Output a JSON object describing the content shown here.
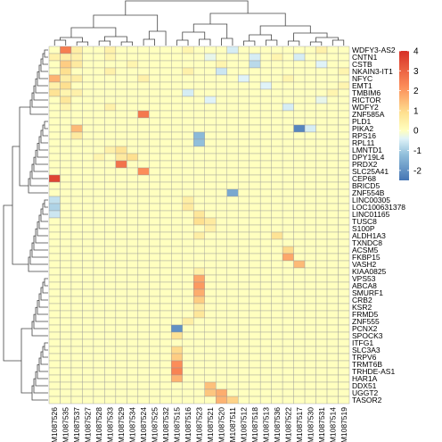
{
  "chart_data": {
    "type": "heatmap",
    "title": "",
    "samples": [
      "GSM1087526",
      "GSM1087535",
      "GSM1087537",
      "GSM1087527",
      "GSM1087528",
      "GSM1087533",
      "GSM1087529",
      "GSM1087534",
      "GSM1087524",
      "GSM1087525",
      "GSM1087532",
      "GSM1087515",
      "GSM1087516",
      "GSM1087523",
      "GSM1087521",
      "GSM1087520",
      "GSM1087511",
      "GSM1087512",
      "GSM1087518",
      "GSM1087513",
      "GSM1087536",
      "GSM1087522",
      "GSM1087517",
      "GSM1087530",
      "GSM1087531",
      "GSM1087514",
      "GSM1087519"
    ],
    "genes": [
      "WDFY3-AS2",
      "CNTN1",
      "CSTB",
      "NKAIN3-IT1",
      "NFYC",
      "EMT1",
      "TMBIM6",
      "RICTOR",
      "WDFY2",
      "ZNF585A",
      "PLD1",
      "PIKA2",
      "RPS16",
      "RPL11",
      "LMNTD1",
      "DPY19L4",
      "PRDX2",
      "SLC25A41",
      "CEP68",
      "BRICD5",
      "ZNF554B",
      "LINC00305",
      "LOC100631378",
      "LINC01165",
      "TUSC8",
      "S100P",
      "ALDH1A3",
      "TXNDC8",
      "ACSM5",
      "FKBP15",
      "VASH2",
      "KIAA0825",
      "VPS53",
      "ABCA8",
      "SMURF1",
      "CRB2",
      "KSR2",
      "FRMD5",
      "ZNF555",
      "PCNX2",
      "SPOCK3",
      "ITFG1",
      "SLC3A3",
      "TRPV6",
      "TRMT6B",
      "TRHDE-AS1",
      "HAR1A",
      "DDX51",
      "UGGT2",
      "TASOR2"
    ],
    "color_scale": {
      "min": -2.5,
      "max": 4,
      "ticks": [
        4,
        3,
        2,
        1,
        0,
        -1,
        -2
      ],
      "colors": [
        "#4575b4",
        "#91bfdb",
        "#e0f3f8",
        "#ffffbf",
        "#fee090",
        "#fc8d59",
        "#d73027"
      ],
      "stops": [
        -2.5,
        -1.2,
        -0.4,
        0,
        0.9,
        2.2,
        4
      ]
    },
    "values": [
      [
        0,
        2.5,
        0.5,
        0,
        0,
        0.4,
        0,
        0,
        0,
        0,
        0,
        0,
        0.3,
        0,
        0,
        0,
        -0.5,
        0,
        0,
        0,
        0,
        0,
        0,
        0,
        0.4,
        0,
        0
      ],
      [
        0.4,
        0.5,
        0.4,
        0,
        0,
        0.3,
        0,
        0,
        0,
        0,
        0,
        0,
        0,
        0,
        -0.3,
        0,
        0,
        0,
        -0.5,
        0,
        0.3,
        0,
        -0.5,
        0,
        0,
        0,
        0
      ],
      [
        0,
        1.2,
        0.6,
        0,
        0,
        0,
        0,
        0.3,
        0,
        0,
        0,
        0,
        0,
        0,
        0,
        0.3,
        0,
        0,
        -0.8,
        0,
        0,
        0,
        0,
        0,
        -0.4,
        0,
        0
      ],
      [
        0,
        0.9,
        0,
        0,
        0,
        0.4,
        0,
        0,
        0,
        0,
        0,
        0,
        0.4,
        0,
        0,
        -0.6,
        0,
        0,
        0,
        0,
        0,
        0,
        0,
        0,
        0,
        0,
        0.3
      ],
      [
        1.6,
        0.5,
        0.5,
        0,
        0,
        0,
        0,
        0,
        0.4,
        0,
        0,
        0,
        0,
        0,
        0,
        0,
        0,
        -0.4,
        0,
        0,
        0,
        0.3,
        0,
        0,
        0,
        0,
        0
      ],
      [
        0.4,
        0.9,
        0,
        0,
        0,
        0,
        0,
        0,
        0,
        0,
        0,
        0,
        0,
        0,
        0,
        0,
        0,
        0,
        0,
        -0.4,
        0,
        0,
        0,
        0,
        0,
        0,
        0.3
      ],
      [
        0.8,
        0.3,
        0.4,
        0,
        0,
        0,
        0,
        0,
        0,
        0,
        0,
        0,
        -0.5,
        0,
        0,
        0,
        0,
        0,
        0,
        0,
        0,
        0,
        0,
        0,
        0,
        0.3,
        0
      ],
      [
        0,
        0.7,
        0,
        0,
        0,
        0,
        0,
        0,
        0,
        0,
        0,
        0,
        0,
        0,
        -0.4,
        0,
        0,
        0,
        0,
        0,
        0,
        0,
        0,
        0,
        -0.3,
        0,
        0
      ],
      [
        0,
        0.3,
        0,
        0,
        0,
        0.4,
        0,
        0,
        0,
        0,
        0,
        0,
        0,
        0,
        0,
        0,
        0,
        0,
        0,
        0,
        0,
        -0.5,
        0,
        0,
        0,
        0,
        0
      ],
      [
        0,
        0,
        0,
        0,
        0,
        0,
        0,
        0,
        2.6,
        0,
        0,
        0,
        0,
        0,
        0,
        0,
        0,
        0,
        0,
        0,
        0,
        0,
        0,
        0,
        0,
        0,
        0
      ],
      [
        0,
        0,
        0,
        0,
        0,
        0,
        0,
        0,
        0,
        0,
        0,
        0,
        0,
        0,
        0,
        0,
        0,
        0,
        0,
        0,
        0,
        0,
        0,
        0,
        0,
        0,
        0
      ],
      [
        0,
        0,
        1.5,
        0,
        0,
        0,
        0,
        0,
        0,
        0,
        0,
        0,
        0,
        0,
        0,
        0,
        0,
        0,
        0,
        0,
        0,
        0,
        -2.2,
        -0.5,
        0,
        0,
        0
      ],
      [
        0,
        0,
        0.6,
        0,
        0,
        0,
        0,
        0,
        0,
        0,
        0,
        0,
        0,
        -1.3,
        0,
        0,
        0,
        0,
        0,
        0,
        0,
        0,
        0,
        0,
        0,
        0,
        0
      ],
      [
        0,
        0,
        0,
        0,
        0,
        0,
        0,
        0,
        0,
        0,
        0,
        0,
        0,
        -1.2,
        0,
        0,
        0,
        0,
        0,
        0,
        0,
        0,
        0,
        0,
        0,
        0,
        0
      ],
      [
        0,
        0,
        0,
        0,
        0,
        0.4,
        0.8,
        0,
        0,
        0,
        0,
        0,
        0,
        0,
        0,
        0,
        0,
        0,
        0,
        0,
        0,
        0,
        0,
        0,
        0,
        0,
        0
      ],
      [
        0,
        0,
        0,
        0,
        0.3,
        0,
        0.6,
        0.9,
        0,
        0,
        0,
        0,
        0,
        0,
        0,
        0,
        0,
        0,
        0,
        0,
        0,
        0,
        0,
        0,
        0,
        0,
        0
      ],
      [
        0,
        0,
        0,
        0,
        0,
        0,
        2.7,
        0,
        0,
        0,
        0,
        0,
        0,
        0,
        0,
        0,
        0,
        0,
        0,
        0,
        0,
        0,
        0,
        0,
        0,
        0,
        0
      ],
      [
        0,
        0,
        0,
        0,
        0,
        0,
        0,
        0,
        2.2,
        0,
        0,
        0,
        0,
        0,
        0,
        0,
        0,
        0,
        0,
        0,
        0,
        0,
        0,
        0,
        0,
        0,
        0
      ],
      [
        3.6,
        0,
        0,
        0,
        0,
        0,
        0,
        0,
        0,
        0,
        0,
        0,
        0,
        0,
        0,
        0,
        0,
        0,
        0,
        0,
        0,
        0,
        0,
        0,
        0,
        0,
        0
      ],
      [
        0,
        0,
        0,
        0,
        0,
        0,
        0,
        0,
        0,
        0,
        0,
        0,
        0,
        0,
        0,
        0,
        0,
        0,
        0,
        0,
        0,
        0,
        0,
        0,
        0,
        0,
        0
      ],
      [
        0,
        0,
        0,
        0,
        0,
        0,
        0,
        0,
        0,
        0,
        0,
        0,
        0,
        0,
        0,
        0,
        -1.6,
        0,
        0,
        0,
        0,
        0,
        0,
        0,
        0,
        0,
        0
      ],
      [
        -0.7,
        0,
        0,
        0,
        0,
        0,
        0,
        0,
        0,
        0,
        0,
        0,
        0.5,
        0,
        0,
        0,
        0,
        0,
        0,
        0,
        0,
        0,
        0,
        0,
        0,
        0,
        0
      ],
      [
        -0.9,
        0,
        0,
        0,
        0,
        0,
        0,
        0,
        0,
        0,
        0,
        0,
        0.6,
        0,
        0,
        0,
        0,
        0,
        0,
        0,
        0,
        0,
        0,
        0,
        0,
        0,
        0
      ],
      [
        -0.6,
        0,
        0,
        0,
        0,
        0,
        0,
        0,
        0,
        0,
        0,
        0,
        0,
        0.7,
        0,
        0,
        0,
        0,
        0,
        0,
        0,
        0,
        0,
        0,
        0,
        0,
        0
      ],
      [
        0,
        0,
        0,
        0,
        0,
        0,
        0,
        0,
        0,
        0,
        0,
        0,
        0,
        0.9,
        0.6,
        0,
        0,
        0,
        0,
        0,
        0,
        0,
        0,
        0,
        0,
        0,
        0
      ],
      [
        0,
        0,
        0,
        0,
        0,
        0,
        0,
        0,
        0,
        0,
        0,
        0,
        0,
        0,
        0.4,
        0,
        0,
        0,
        0,
        0,
        0,
        0,
        0,
        0,
        0,
        0,
        0
      ],
      [
        0,
        0,
        0,
        0,
        0,
        0,
        0,
        0,
        0,
        0,
        0,
        0,
        0,
        0.5,
        0,
        0,
        0,
        0,
        0,
        0,
        0.8,
        0,
        0,
        0,
        0,
        0,
        0
      ],
      [
        0,
        0,
        0,
        0,
        0,
        0,
        0,
        0,
        0,
        0,
        0,
        0,
        0,
        0,
        0,
        0,
        0,
        0,
        0,
        0,
        0,
        0,
        0,
        0,
        0,
        0,
        0
      ],
      [
        0,
        0,
        0,
        0,
        0,
        0,
        0,
        0,
        0,
        0,
        0,
        0,
        0,
        0,
        0,
        0,
        0,
        0,
        0,
        0,
        0,
        1,
        0,
        0,
        0,
        0,
        0
      ],
      [
        0,
        0,
        0,
        0,
        0,
        0,
        0,
        0,
        0,
        0,
        0,
        0,
        0,
        0,
        0,
        0,
        0,
        0,
        0,
        0,
        0,
        1.8,
        0,
        0,
        0,
        0,
        0
      ],
      [
        0,
        0,
        0,
        0,
        0,
        0,
        0,
        0,
        0,
        0,
        0,
        0,
        0,
        0,
        0,
        0,
        0,
        0,
        0,
        0,
        0,
        0,
        1.5,
        0,
        0,
        0,
        0
      ],
      [
        0,
        0,
        0,
        0,
        0,
        0,
        0,
        0,
        0,
        0,
        0,
        0,
        0,
        0.4,
        0,
        0,
        0,
        0,
        0,
        0,
        0,
        0,
        0,
        0,
        0,
        0,
        0
      ],
      [
        0,
        0,
        0,
        0,
        0,
        0,
        0,
        0,
        0,
        0,
        0,
        0,
        0,
        1.8,
        0,
        0,
        0,
        0,
        0,
        0,
        0,
        0,
        0,
        0,
        0,
        0,
        0
      ],
      [
        0,
        0,
        0,
        0,
        0,
        0,
        0,
        0,
        0,
        0,
        0,
        0,
        0,
        2,
        0,
        0,
        0,
        0,
        0,
        0,
        0,
        0,
        0,
        0,
        0,
        0,
        0
      ],
      [
        0,
        0,
        0,
        0,
        0,
        0,
        0,
        0,
        0,
        0,
        0,
        0,
        0,
        1.7,
        0,
        0,
        0,
        0,
        0,
        0,
        0,
        0,
        0,
        0,
        0,
        0,
        0
      ],
      [
        0,
        0,
        0,
        0,
        0,
        0,
        0,
        0,
        0,
        0,
        0,
        0,
        0,
        1.2,
        0,
        0,
        0,
        0,
        0,
        0,
        0,
        0,
        0,
        0,
        0,
        0,
        0
      ],
      [
        0,
        0,
        0,
        0,
        0,
        0,
        0,
        0,
        0,
        0,
        0,
        0,
        0,
        0.5,
        0,
        0,
        0,
        0,
        0,
        0,
        0,
        0,
        0,
        0,
        0,
        0,
        0
      ],
      [
        0,
        0,
        0,
        0,
        0,
        0,
        0,
        0,
        0,
        0,
        0,
        0,
        0,
        0.7,
        0,
        0,
        0,
        0,
        0,
        0,
        0,
        0,
        0,
        0,
        0,
        0,
        0
      ],
      [
        0,
        0,
        0,
        0,
        0,
        0,
        0,
        0,
        0,
        0,
        0,
        0,
        0.5,
        0,
        0,
        0,
        0,
        0,
        0,
        0,
        0,
        0,
        0,
        0,
        0,
        0,
        0
      ],
      [
        0,
        0,
        0,
        0,
        0,
        0,
        0,
        0,
        0,
        0,
        0,
        -2,
        0,
        0,
        0,
        0,
        0,
        0,
        0,
        0,
        0,
        0,
        0,
        0,
        0,
        0,
        0
      ],
      [
        0,
        0,
        0,
        0,
        0,
        0,
        0,
        0,
        0,
        0,
        0,
        0.8,
        0,
        0,
        0,
        0,
        0,
        0,
        0,
        0,
        0,
        0,
        0,
        0,
        0,
        0,
        0
      ],
      [
        0,
        0,
        0,
        0,
        0,
        0,
        0,
        0,
        0,
        0,
        0,
        0,
        0,
        0,
        0,
        0,
        0,
        0,
        0,
        0,
        0,
        0,
        0,
        0,
        0,
        0,
        0
      ],
      [
        0,
        0,
        0,
        0,
        0,
        0,
        0,
        0,
        0,
        0,
        0,
        1,
        0,
        0,
        0,
        0,
        0,
        0,
        0,
        0,
        0,
        0,
        0,
        0,
        0,
        0,
        0
      ],
      [
        0,
        0,
        0,
        0,
        0,
        0,
        0,
        0,
        0,
        0,
        0,
        1.2,
        0,
        0,
        0,
        0,
        0,
        0,
        0,
        0,
        0,
        0,
        0,
        0,
        0,
        0,
        0
      ],
      [
        0,
        0,
        0,
        0,
        0,
        0,
        0,
        0,
        0,
        0,
        0,
        2.2,
        0,
        0,
        0,
        0,
        0,
        0,
        0,
        0,
        0,
        0,
        0,
        0,
        0,
        0,
        0
      ],
      [
        0,
        0,
        0,
        0,
        0,
        0,
        0,
        0,
        0,
        0,
        0,
        2.4,
        0,
        0,
        0,
        0,
        0,
        0,
        0,
        0,
        0,
        0,
        0,
        0,
        0,
        0,
        0
      ],
      [
        0,
        0,
        0,
        0,
        0,
        0,
        0,
        0,
        0,
        0,
        0,
        1.6,
        0,
        0,
        0,
        0,
        0,
        0,
        0,
        0,
        0,
        0,
        0,
        0,
        0,
        0,
        0
      ],
      [
        0,
        0,
        0,
        0,
        0,
        0,
        0,
        0,
        0,
        0,
        0,
        0,
        0,
        0,
        1.4,
        0,
        0,
        0,
        0,
        0,
        0,
        0,
        0,
        0,
        0,
        0,
        0
      ],
      [
        0,
        0,
        0,
        0,
        0,
        0,
        0,
        0,
        0,
        0,
        0,
        0,
        0,
        0,
        1.3,
        1.7,
        0,
        0,
        0,
        0,
        0,
        0,
        0,
        0,
        0,
        0,
        0
      ],
      [
        0,
        0,
        0,
        0,
        0,
        0,
        0,
        0,
        0,
        0,
        0,
        0,
        0,
        0,
        0,
        1.6,
        1.1,
        0,
        0,
        0,
        0,
        0,
        0,
        0,
        0,
        0,
        0
      ]
    ]
  }
}
